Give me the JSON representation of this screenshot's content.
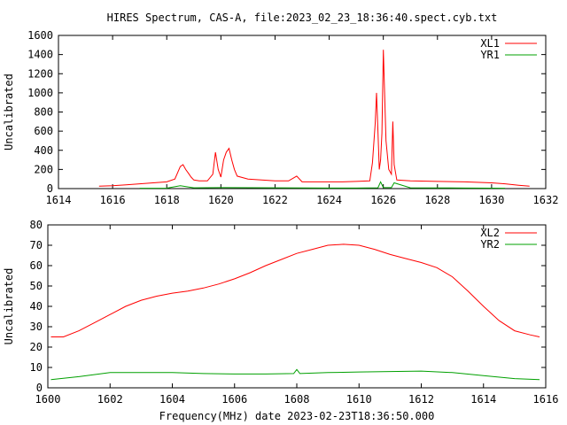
{
  "title": "HIRES Spectrum, CAS-A, file:2023_02_23_18:36:40.spect.cyb.txt",
  "colors": {
    "red": "#ff0000",
    "green": "#00a000",
    "axis": "#000000"
  },
  "chart_data": [
    {
      "type": "line",
      "ylabel": "Uncalibrated",
      "xlabel": "",
      "xlim": [
        1614,
        1632
      ],
      "ylim": [
        0,
        1600
      ],
      "xticks": [
        1614,
        1616,
        1618,
        1620,
        1622,
        1624,
        1626,
        1628,
        1630,
        1632
      ],
      "yticks": [
        0,
        200,
        400,
        600,
        800,
        1000,
        1200,
        1400,
        1600
      ],
      "legend_position": "top-right",
      "series": [
        {
          "name": "XL1",
          "color": "#ff0000",
          "x": [
            1615.5,
            1616.0,
            1616.5,
            1617.0,
            1617.5,
            1618.0,
            1618.3,
            1618.5,
            1618.6,
            1618.7,
            1618.8,
            1618.9,
            1619.0,
            1619.2,
            1619.5,
            1619.7,
            1619.8,
            1619.9,
            1620.0,
            1620.1,
            1620.2,
            1620.3,
            1620.4,
            1620.5,
            1620.6,
            1621.0,
            1621.5,
            1622.0,
            1622.5,
            1622.8,
            1623.0,
            1623.5,
            1624.0,
            1624.5,
            1625.0,
            1625.5,
            1625.6,
            1625.7,
            1625.75,
            1625.8,
            1625.85,
            1625.9,
            1625.95,
            1626.0,
            1626.1,
            1626.2,
            1626.3,
            1626.35,
            1626.4,
            1626.5,
            1627.0,
            1628.0,
            1629.0,
            1630.0,
            1630.5,
            1631.0,
            1631.4
          ],
          "y": [
            25,
            30,
            40,
            50,
            60,
            70,
            100,
            230,
            250,
            200,
            160,
            120,
            90,
            80,
            80,
            150,
            380,
            200,
            120,
            300,
            380,
            420,
            300,
            200,
            130,
            100,
            90,
            80,
            80,
            130,
            70,
            70,
            70,
            70,
            75,
            80,
            270,
            680,
            1000,
            600,
            200,
            300,
            580,
            1450,
            500,
            200,
            150,
            700,
            250,
            90,
            80,
            75,
            70,
            60,
            50,
            35,
            25
          ]
        },
        {
          "name": "YR1",
          "color": "#00a000",
          "x": [
            1617.0,
            1618.0,
            1618.5,
            1619.0,
            1620.0,
            1622.0,
            1624.0,
            1625.0,
            1625.8,
            1625.9,
            1626.0,
            1626.3,
            1626.4,
            1627.0,
            1628.0,
            1629.0,
            1630.0,
            1630.5
          ],
          "y": [
            4,
            5,
            30,
            8,
            10,
            8,
            6,
            6,
            8,
            70,
            10,
            10,
            60,
            8,
            7,
            6,
            5,
            4
          ]
        }
      ]
    },
    {
      "type": "line",
      "ylabel": "Uncalibrated",
      "xlabel": "Frequency(MHz) date 2023-02-23T18:36:50.000",
      "xlim": [
        1600,
        1616
      ],
      "ylim": [
        0,
        80
      ],
      "xticks": [
        1600,
        1602,
        1604,
        1606,
        1608,
        1610,
        1612,
        1614,
        1616
      ],
      "yticks": [
        0,
        10,
        20,
        30,
        40,
        50,
        60,
        70,
        80
      ],
      "legend_position": "top-right",
      "series": [
        {
          "name": "XL2",
          "color": "#ff0000",
          "x": [
            1600.1,
            1600.5,
            1601.0,
            1601.5,
            1602.0,
            1602.5,
            1603.0,
            1603.5,
            1604.0,
            1604.5,
            1605.0,
            1605.5,
            1606.0,
            1606.5,
            1607.0,
            1607.5,
            1608.0,
            1608.5,
            1609.0,
            1609.5,
            1610.0,
            1610.5,
            1611.0,
            1611.5,
            1612.0,
            1612.5,
            1613.0,
            1613.5,
            1614.0,
            1614.5,
            1615.0,
            1615.5,
            1615.8
          ],
          "y": [
            25,
            25,
            28,
            32,
            36,
            40,
            43,
            45,
            46.5,
            47.5,
            49,
            51,
            53.5,
            56.5,
            60,
            63,
            66,
            68,
            70,
            70.5,
            70,
            68,
            65.5,
            63.5,
            61.5,
            59,
            54.5,
            47.5,
            40,
            33,
            28,
            26,
            25
          ]
        },
        {
          "name": "YR2",
          "color": "#00a000",
          "x": [
            1600.1,
            1601.0,
            1602.0,
            1603.0,
            1604.0,
            1605.0,
            1606.0,
            1607.0,
            1607.9,
            1608.0,
            1608.1,
            1609.0,
            1610.0,
            1611.0,
            1612.0,
            1613.0,
            1614.0,
            1615.0,
            1615.8
          ],
          "y": [
            4,
            5.5,
            7.5,
            7.5,
            7.5,
            7,
            6.8,
            6.8,
            7,
            9,
            7,
            7.5,
            7.8,
            8,
            8.2,
            7.5,
            6,
            4.5,
            4
          ]
        }
      ]
    }
  ]
}
